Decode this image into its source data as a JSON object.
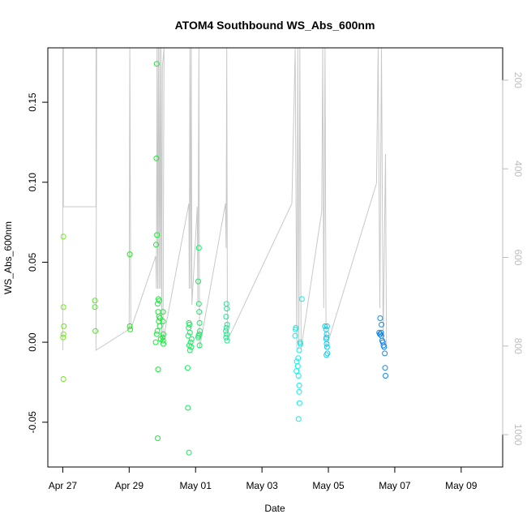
{
  "chart_data": {
    "type": "scatter",
    "title": "ATOM4 Southbound WS_Abs_600nm",
    "xlabel": "Date",
    "ylabel": "WS_Abs_600nm",
    "x_ticks": [
      "Apr 27",
      "Apr 29",
      "May 01",
      "May 03",
      "May 05",
      "May 07",
      "May 09"
    ],
    "y_ticks": [
      "-0.05",
      "0.00",
      "0.05",
      "0.10",
      "0.15"
    ],
    "y_tick_values": [
      -0.05,
      0.0,
      0.05,
      0.1,
      0.15
    ],
    "y2_ticks": [
      "200",
      "400",
      "600",
      "800",
      "1000"
    ],
    "y2_tick_values": [
      200,
      400,
      600,
      800,
      1000
    ],
    "xlim_days": [
      26.55,
      40.25
    ],
    "ylim": [
      -0.078,
      0.184
    ],
    "y2lim": [
      1073,
      127
    ],
    "grid": false,
    "point_style": "open circle, color shifts green to blue with date",
    "points": [
      {
        "x": 27.02,
        "y": 0.066
      },
      {
        "x": 27.02,
        "y": 0.022
      },
      {
        "x": 27.03,
        "y": 0.01
      },
      {
        "x": 27.02,
        "y": 0.005
      },
      {
        "x": 27.01,
        "y": 0.003
      },
      {
        "x": 27.02,
        "y": -0.023
      },
      {
        "x": 27.97,
        "y": 0.026
      },
      {
        "x": 27.97,
        "y": 0.022
      },
      {
        "x": 27.98,
        "y": 0.007
      },
      {
        "x": 29.02,
        "y": 0.055
      },
      {
        "x": 29.02,
        "y": 0.01
      },
      {
        "x": 29.03,
        "y": 0.008
      },
      {
        "x": 29.83,
        "y": 0.174
      },
      {
        "x": 29.82,
        "y": 0.115
      },
      {
        "x": 29.84,
        "y": 0.067
      },
      {
        "x": 29.81,
        "y": 0.061
      },
      {
        "x": 29.88,
        "y": 0.027
      },
      {
        "x": 29.91,
        "y": 0.026
      },
      {
        "x": 29.86,
        "y": 0.024
      },
      {
        "x": 29.87,
        "y": 0.019
      },
      {
        "x": 29.9,
        "y": 0.016
      },
      {
        "x": 29.93,
        "y": 0.015
      },
      {
        "x": 29.89,
        "y": 0.013
      },
      {
        "x": 29.92,
        "y": 0.01
      },
      {
        "x": 29.85,
        "y": 0.007
      },
      {
        "x": 29.83,
        "y": 0.005
      },
      {
        "x": 29.95,
        "y": 0.002
      },
      {
        "x": 29.8,
        "y": 0.0
      },
      {
        "x": 29.87,
        "y": -0.017
      },
      {
        "x": 29.86,
        "y": -0.06
      },
      {
        "x": 30.02,
        "y": 0.019
      },
      {
        "x": 30.02,
        "y": 0.013
      },
      {
        "x": 30.03,
        "y": 0.005
      },
      {
        "x": 30.01,
        "y": 0.003
      },
      {
        "x": 30.02,
        "y": 0.001
      },
      {
        "x": 30.03,
        "y": -0.001
      },
      {
        "x": 30.8,
        "y": 0.012
      },
      {
        "x": 30.82,
        "y": 0.011
      },
      {
        "x": 30.79,
        "y": 0.009
      },
      {
        "x": 30.83,
        "y": 0.006
      },
      {
        "x": 30.78,
        "y": 0.004
      },
      {
        "x": 30.88,
        "y": 0.002
      },
      {
        "x": 30.85,
        "y": 0.0
      },
      {
        "x": 30.81,
        "y": -0.002
      },
      {
        "x": 30.87,
        "y": -0.003
      },
      {
        "x": 30.83,
        "y": -0.005
      },
      {
        "x": 30.76,
        "y": -0.016
      },
      {
        "x": 30.77,
        "y": -0.041
      },
      {
        "x": 30.8,
        "y": -0.069
      },
      {
        "x": 31.1,
        "y": 0.059
      },
      {
        "x": 31.08,
        "y": 0.038
      },
      {
        "x": 31.1,
        "y": 0.024
      },
      {
        "x": 31.11,
        "y": 0.019
      },
      {
        "x": 31.12,
        "y": 0.012
      },
      {
        "x": 31.13,
        "y": 0.007
      },
      {
        "x": 31.11,
        "y": 0.005
      },
      {
        "x": 31.09,
        "y": 0.004
      },
      {
        "x": 31.08,
        "y": 0.003
      },
      {
        "x": 31.12,
        "y": -0.002
      },
      {
        "x": 31.93,
        "y": 0.024
      },
      {
        "x": 31.94,
        "y": 0.021
      },
      {
        "x": 31.92,
        "y": 0.016
      },
      {
        "x": 31.95,
        "y": 0.011
      },
      {
        "x": 31.93,
        "y": 0.009
      },
      {
        "x": 31.91,
        "y": 0.007
      },
      {
        "x": 31.94,
        "y": 0.005
      },
      {
        "x": 31.92,
        "y": 0.003
      },
      {
        "x": 31.95,
        "y": 0.001
      },
      {
        "x": 34.02,
        "y": 0.009
      },
      {
        "x": 34.01,
        "y": 0.008
      },
      {
        "x": 34.0,
        "y": 0.004
      },
      {
        "x": 34.2,
        "y": 0.027
      },
      {
        "x": 34.15,
        "y": 0.0
      },
      {
        "x": 34.16,
        "y": -0.001
      },
      {
        "x": 34.12,
        "y": -0.005
      },
      {
        "x": 34.09,
        "y": -0.01
      },
      {
        "x": 34.05,
        "y": -0.012
      },
      {
        "x": 34.08,
        "y": -0.015
      },
      {
        "x": 34.04,
        "y": -0.018
      },
      {
        "x": 34.1,
        "y": -0.021
      },
      {
        "x": 34.12,
        "y": -0.027
      },
      {
        "x": 34.12,
        "y": -0.031
      },
      {
        "x": 34.13,
        "y": -0.038
      },
      {
        "x": 34.1,
        "y": -0.048
      },
      {
        "x": 34.9,
        "y": 0.01
      },
      {
        "x": 34.96,
        "y": 0.01
      },
      {
        "x": 34.93,
        "y": 0.008
      },
      {
        "x": 34.95,
        "y": 0.005
      },
      {
        "x": 34.94,
        "y": 0.003
      },
      {
        "x": 34.93,
        "y": 0.002
      },
      {
        "x": 34.95,
        "y": -0.001
      },
      {
        "x": 34.96,
        "y": -0.003
      },
      {
        "x": 34.97,
        "y": -0.007
      },
      {
        "x": 34.94,
        "y": -0.008
      },
      {
        "x": 36.56,
        "y": 0.015
      },
      {
        "x": 36.6,
        "y": 0.011
      },
      {
        "x": 36.53,
        "y": 0.006
      },
      {
        "x": 36.55,
        "y": 0.005
      },
      {
        "x": 36.57,
        "y": 0.005
      },
      {
        "x": 36.59,
        "y": 0.006
      },
      {
        "x": 36.6,
        "y": 0.004
      },
      {
        "x": 36.62,
        "y": 0.001
      },
      {
        "x": 36.64,
        "y": 0.0
      },
      {
        "x": 36.66,
        "y": -0.002
      },
      {
        "x": 36.68,
        "y": -0.003
      },
      {
        "x": 36.7,
        "y": -0.007
      },
      {
        "x": 36.71,
        "y": -0.016
      },
      {
        "x": 36.72,
        "y": -0.021
      }
    ]
  }
}
